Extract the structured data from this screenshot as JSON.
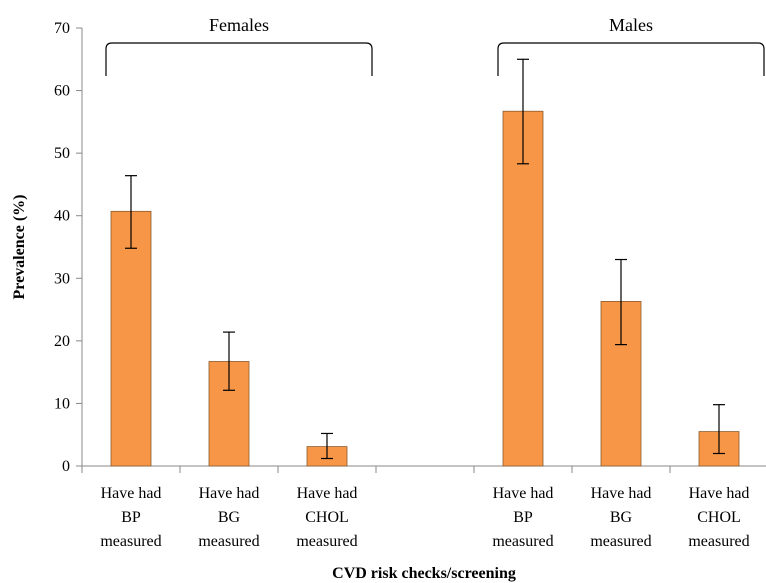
{
  "chart_data": {
    "type": "bar",
    "title": "",
    "xlabel": "CVD risk checks/screening",
    "ylabel": "Prevalence (%)",
    "ylim": [
      0,
      70
    ],
    "yticks": [
      0,
      10,
      20,
      30,
      40,
      50,
      60,
      70
    ],
    "grid": false,
    "bar_color": "#F79646",
    "bar_edge_color": "#8B5A2B",
    "groups": [
      {
        "name": "Females",
        "categories": [
          [
            "Have had",
            "BP",
            "measured"
          ],
          [
            "Have had",
            "BG",
            "measured"
          ],
          [
            "Have had",
            "CHOL",
            "measured"
          ]
        ],
        "values": [
          40.7,
          16.7,
          3.1
        ],
        "error_low": [
          34.8,
          12.1,
          1.2
        ],
        "error_high": [
          46.4,
          21.4,
          5.2
        ]
      },
      {
        "name": "Males",
        "categories": [
          [
            "Have had",
            "BP",
            "measured"
          ],
          [
            "Have had",
            "BG",
            "measured"
          ],
          [
            "Have had",
            "CHOL",
            "measured"
          ]
        ],
        "values": [
          56.7,
          26.3,
          5.5
        ],
        "error_low": [
          48.3,
          19.4,
          2.0
        ],
        "error_high": [
          65.0,
          33.0,
          9.8
        ]
      }
    ]
  }
}
